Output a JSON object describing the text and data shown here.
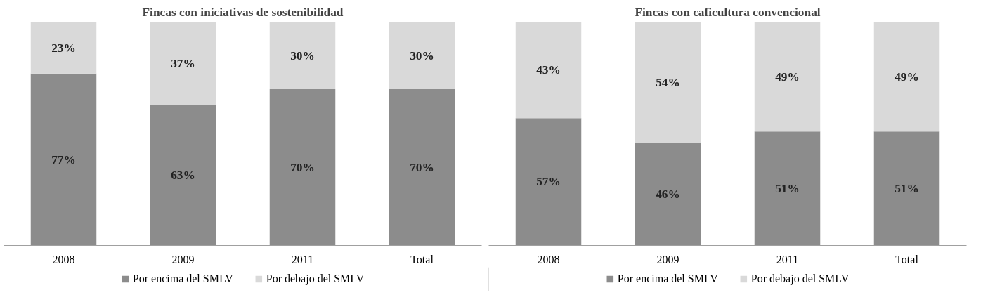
{
  "chart_data": [
    {
      "type": "bar",
      "title": "Fincas con iniciativas de sostenibilidad",
      "categories": [
        "2008",
        "2009",
        "2011",
        "Total"
      ],
      "stacked": true,
      "data_labels": true,
      "tick_labels": "x",
      "grid": false,
      "legend": "bottom",
      "series": [
        {
          "name": "Por encima del SMLV",
          "color": "#8c8c8c",
          "values": [
            77,
            63,
            70,
            70
          ],
          "value_labels": [
            "77%",
            "63%",
            "70%",
            "70%"
          ]
        },
        {
          "name": "Por debajo del SMLV",
          "color": "#d9d9d9",
          "values": [
            23,
            37,
            30,
            30
          ],
          "value_labels": [
            "23%",
            "37%",
            "30%",
            "30%"
          ]
        }
      ]
    },
    {
      "type": "bar",
      "title": "Fincas con caficultura convencional",
      "categories": [
        "2008",
        "2009",
        "2011",
        "Total"
      ],
      "stacked": true,
      "data_labels": true,
      "tick_labels": "x",
      "grid": false,
      "legend": "bottom",
      "series": [
        {
          "name": "Por encima del SMLV",
          "color": "#8c8c8c",
          "values": [
            57,
            46,
            51,
            51
          ],
          "value_labels": [
            "57%",
            "46%",
            "51%",
            "51%"
          ]
        },
        {
          "name": "Por debajo del SMLV",
          "color": "#d9d9d9",
          "values": [
            43,
            54,
            49,
            49
          ],
          "value_labels": [
            "43%",
            "54%",
            "49%",
            "49%"
          ]
        }
      ]
    }
  ]
}
